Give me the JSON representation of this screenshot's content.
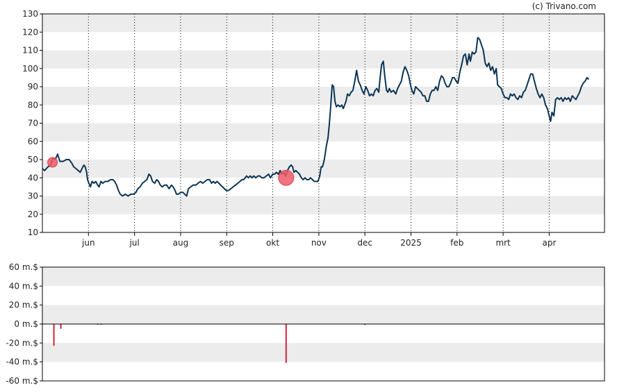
{
  "credit": "(c) Trivano.com",
  "colors": {
    "band": "#ececec",
    "price_line": "#0b3454",
    "marker_fill": "#ee5a69",
    "marker_stroke": "#d44455",
    "volume_bar": "#d6213a",
    "frame": "#000000"
  },
  "chart_data": [
    {
      "type": "line",
      "name": "price",
      "y_range": [
        10,
        130
      ],
      "y_ticks": [
        10,
        20,
        30,
        40,
        50,
        60,
        70,
        80,
        90,
        100,
        110,
        120,
        130
      ],
      "grid": "alternating horizontal bands, dotted vertical month lines",
      "x_range_months": [
        0,
        12.2
      ],
      "month_ticks": [
        {
          "label": "jun",
          "m": 1
        },
        {
          "label": "jul",
          "m": 2
        },
        {
          "label": "aug",
          "m": 3
        },
        {
          "label": "sep",
          "m": 4
        },
        {
          "label": "okt",
          "m": 5
        },
        {
          "label": "nov",
          "m": 6
        },
        {
          "label": "dec",
          "m": 7
        },
        {
          "label": "2025",
          "m": 8
        },
        {
          "label": "feb",
          "m": 9
        },
        {
          "label": "mrt",
          "m": 10
        },
        {
          "label": "apr",
          "m": 11
        }
      ],
      "points": [
        [
          0.0,
          45
        ],
        [
          0.05,
          44
        ],
        [
          0.12,
          46
        ],
        [
          0.18,
          47
        ],
        [
          0.23,
          51
        ],
        [
          0.28,
          50
        ],
        [
          0.33,
          53
        ],
        [
          0.38,
          49
        ],
        [
          0.45,
          49
        ],
        [
          0.52,
          50
        ],
        [
          0.58,
          50
        ],
        [
          0.64,
          48
        ],
        [
          0.68,
          46
        ],
        [
          0.73,
          45
        ],
        [
          0.78,
          44
        ],
        [
          0.82,
          43
        ],
        [
          0.86,
          45
        ],
        [
          0.9,
          47
        ],
        [
          0.93,
          46
        ],
        [
          0.96,
          43
        ],
        [
          0.98,
          39
        ],
        [
          1.01,
          37
        ],
        [
          1.04,
          35
        ],
        [
          1.08,
          38
        ],
        [
          1.12,
          37
        ],
        [
          1.16,
          38
        ],
        [
          1.2,
          36
        ],
        [
          1.23,
          35
        ],
        [
          1.27,
          38
        ],
        [
          1.31,
          37
        ],
        [
          1.36,
          38
        ],
        [
          1.42,
          38
        ],
        [
          1.48,
          39
        ],
        [
          1.53,
          39
        ],
        [
          1.57,
          38
        ],
        [
          1.61,
          36
        ],
        [
          1.65,
          33
        ],
        [
          1.69,
          31
        ],
        [
          1.74,
          30
        ],
        [
          1.8,
          31
        ],
        [
          1.86,
          30
        ],
        [
          1.92,
          31
        ],
        [
          1.98,
          31
        ],
        [
          2.03,
          32
        ],
        [
          2.07,
          34
        ],
        [
          2.12,
          35
        ],
        [
          2.17,
          37
        ],
        [
          2.22,
          38
        ],
        [
          2.27,
          39
        ],
        [
          2.31,
          42
        ],
        [
          2.35,
          41
        ],
        [
          2.39,
          38
        ],
        [
          2.44,
          37
        ],
        [
          2.48,
          39
        ],
        [
          2.52,
          38
        ],
        [
          2.56,
          36
        ],
        [
          2.6,
          35
        ],
        [
          2.65,
          36
        ],
        [
          2.7,
          36
        ],
        [
          2.75,
          34
        ],
        [
          2.8,
          36
        ],
        [
          2.84,
          35
        ],
        [
          2.88,
          33
        ],
        [
          2.91,
          31
        ],
        [
          2.95,
          31
        ],
        [
          3.0,
          32
        ],
        [
          3.05,
          32
        ],
        [
          3.09,
          31
        ],
        [
          3.13,
          30
        ],
        [
          3.17,
          34
        ],
        [
          3.22,
          35
        ],
        [
          3.27,
          36
        ],
        [
          3.33,
          36
        ],
        [
          3.38,
          37
        ],
        [
          3.43,
          38
        ],
        [
          3.48,
          37
        ],
        [
          3.53,
          38
        ],
        [
          3.58,
          39
        ],
        [
          3.63,
          39
        ],
        [
          3.67,
          37
        ],
        [
          3.71,
          38
        ],
        [
          3.75,
          37
        ],
        [
          3.79,
          38
        ],
        [
          3.83,
          37
        ],
        [
          3.87,
          36
        ],
        [
          3.91,
          35
        ],
        [
          3.95,
          34
        ],
        [
          3.99,
          33
        ],
        [
          4.04,
          33
        ],
        [
          4.09,
          34
        ],
        [
          4.14,
          35
        ],
        [
          4.19,
          36
        ],
        [
          4.24,
          37
        ],
        [
          4.29,
          38
        ],
        [
          4.33,
          39
        ],
        [
          4.37,
          39
        ],
        [
          4.4,
          40
        ],
        [
          4.43,
          41
        ],
        [
          4.47,
          40
        ],
        [
          4.51,
          41
        ],
        [
          4.55,
          40
        ],
        [
          4.59,
          41
        ],
        [
          4.63,
          40
        ],
        [
          4.68,
          41
        ],
        [
          4.72,
          41
        ],
        [
          4.76,
          40
        ],
        [
          4.81,
          40
        ],
        [
          4.86,
          41
        ],
        [
          4.91,
          42
        ],
        [
          4.95,
          40
        ],
        [
          5.0,
          42
        ],
        [
          5.04,
          42
        ],
        [
          5.08,
          43
        ],
        [
          5.12,
          42
        ],
        [
          5.16,
          44
        ],
        [
          5.2,
          42
        ],
        [
          5.24,
          43
        ],
        [
          5.28,
          41
        ],
        [
          5.32,
          44
        ],
        [
          5.36,
          46
        ],
        [
          5.4,
          47
        ],
        [
          5.43,
          46
        ],
        [
          5.46,
          43
        ],
        [
          5.5,
          44
        ],
        [
          5.54,
          43
        ],
        [
          5.58,
          42
        ],
        [
          5.62,
          40
        ],
        [
          5.66,
          39
        ],
        [
          5.7,
          40
        ],
        [
          5.74,
          39
        ],
        [
          5.78,
          39
        ],
        [
          5.82,
          40
        ],
        [
          5.86,
          39
        ],
        [
          5.9,
          38
        ],
        [
          5.94,
          38
        ],
        [
          5.98,
          38
        ],
        [
          6.02,
          41
        ],
        [
          6.05,
          46
        ],
        [
          6.08,
          46
        ],
        [
          6.12,
          50
        ],
        [
          6.16,
          57
        ],
        [
          6.2,
          62
        ],
        [
          6.23,
          70
        ],
        [
          6.26,
          80
        ],
        [
          6.29,
          91
        ],
        [
          6.32,
          90
        ],
        [
          6.35,
          82
        ],
        [
          6.38,
          79
        ],
        [
          6.42,
          80
        ],
        [
          6.46,
          79
        ],
        [
          6.5,
          80
        ],
        [
          6.53,
          78
        ],
        [
          6.56,
          80
        ],
        [
          6.59,
          82
        ],
        [
          6.62,
          86
        ],
        [
          6.66,
          85
        ],
        [
          6.7,
          87
        ],
        [
          6.74,
          88
        ],
        [
          6.78,
          93
        ],
        [
          6.82,
          99
        ],
        [
          6.86,
          93
        ],
        [
          6.9,
          91
        ],
        [
          6.94,
          88
        ],
        [
          6.98,
          86
        ],
        [
          7.02,
          90
        ],
        [
          7.06,
          88
        ],
        [
          7.1,
          85
        ],
        [
          7.14,
          86
        ],
        [
          7.18,
          85
        ],
        [
          7.22,
          88
        ],
        [
          7.26,
          89
        ],
        [
          7.3,
          87
        ],
        [
          7.33,
          95
        ],
        [
          7.36,
          102
        ],
        [
          7.4,
          104
        ],
        [
          7.43,
          96
        ],
        [
          7.47,
          88
        ],
        [
          7.5,
          87
        ],
        [
          7.53,
          89
        ],
        [
          7.57,
          87
        ],
        [
          7.62,
          88
        ],
        [
          7.67,
          86
        ],
        [
          7.71,
          89
        ],
        [
          7.75,
          91
        ],
        [
          7.79,
          93
        ],
        [
          7.83,
          98
        ],
        [
          7.87,
          101
        ],
        [
          7.91,
          99
        ],
        [
          7.95,
          96
        ],
        [
          7.99,
          91
        ],
        [
          8.02,
          88
        ],
        [
          8.06,
          86
        ],
        [
          8.1,
          90
        ],
        [
          8.14,
          89
        ],
        [
          8.18,
          88
        ],
        [
          8.22,
          87
        ],
        [
          8.26,
          85
        ],
        [
          8.3,
          85
        ],
        [
          8.34,
          82
        ],
        [
          8.38,
          82
        ],
        [
          8.42,
          86
        ],
        [
          8.46,
          88
        ],
        [
          8.5,
          88
        ],
        [
          8.54,
          90
        ],
        [
          8.58,
          88
        ],
        [
          8.62,
          93
        ],
        [
          8.66,
          96
        ],
        [
          8.7,
          95
        ],
        [
          8.74,
          92
        ],
        [
          8.78,
          90
        ],
        [
          8.82,
          90
        ],
        [
          8.86,
          92
        ],
        [
          8.9,
          95
        ],
        [
          8.94,
          95
        ],
        [
          8.98,
          93
        ],
        [
          9.02,
          92
        ],
        [
          9.06,
          98
        ],
        [
          9.1,
          102
        ],
        [
          9.14,
          107
        ],
        [
          9.18,
          108
        ],
        [
          9.22,
          102
        ],
        [
          9.26,
          108
        ],
        [
          9.29,
          104
        ],
        [
          9.33,
          109
        ],
        [
          9.37,
          108
        ],
        [
          9.41,
          109
        ],
        [
          9.45,
          117
        ],
        [
          9.49,
          116
        ],
        [
          9.53,
          113
        ],
        [
          9.57,
          110
        ],
        [
          9.61,
          103
        ],
        [
          9.65,
          101
        ],
        [
          9.69,
          103
        ],
        [
          9.73,
          99
        ],
        [
          9.77,
          101
        ],
        [
          9.81,
          97
        ],
        [
          9.85,
          100
        ],
        [
          9.88,
          91
        ],
        [
          9.92,
          90
        ],
        [
          9.96,
          89
        ],
        [
          10.0,
          86
        ],
        [
          10.04,
          84
        ],
        [
          10.08,
          84
        ],
        [
          10.12,
          83
        ],
        [
          10.16,
          86
        ],
        [
          10.2,
          85
        ],
        [
          10.24,
          86
        ],
        [
          10.28,
          84
        ],
        [
          10.32,
          83
        ],
        [
          10.36,
          85
        ],
        [
          10.4,
          84
        ],
        [
          10.44,
          87
        ],
        [
          10.48,
          88
        ],
        [
          10.52,
          91
        ],
        [
          10.56,
          94
        ],
        [
          10.6,
          97
        ],
        [
          10.64,
          97
        ],
        [
          10.68,
          93
        ],
        [
          10.72,
          89
        ],
        [
          10.76,
          86
        ],
        [
          10.8,
          84
        ],
        [
          10.84,
          86
        ],
        [
          10.88,
          84
        ],
        [
          10.92,
          80
        ],
        [
          10.96,
          78
        ],
        [
          11.0,
          74
        ],
        [
          11.03,
          71
        ],
        [
          11.06,
          76
        ],
        [
          11.1,
          74
        ],
        [
          11.14,
          83
        ],
        [
          11.18,
          84
        ],
        [
          11.22,
          83
        ],
        [
          11.26,
          84
        ],
        [
          11.3,
          82
        ],
        [
          11.34,
          84
        ],
        [
          11.38,
          83
        ],
        [
          11.42,
          84
        ],
        [
          11.46,
          82
        ],
        [
          11.5,
          85
        ],
        [
          11.54,
          84
        ],
        [
          11.58,
          83
        ],
        [
          11.62,
          85
        ],
        [
          11.66,
          87
        ],
        [
          11.7,
          90
        ],
        [
          11.74,
          92
        ],
        [
          11.78,
          93
        ],
        [
          11.82,
          95
        ],
        [
          11.86,
          94
        ]
      ],
      "markers": [
        {
          "m": 0.22,
          "value": 48.5,
          "size": "small"
        },
        {
          "m": 5.29,
          "value": 40,
          "size": "large"
        }
      ]
    },
    {
      "type": "bar",
      "name": "volume",
      "unit_suffix": " m.$",
      "y_range": [
        -60,
        60
      ],
      "y_ticks": [
        60,
        40,
        20,
        0,
        -20,
        -40,
        -60
      ],
      "y_tick_labels": [
        "60 m.$",
        "40 m.$",
        "20 m.$",
        "0 m.$",
        "-20 m.$",
        "-40 m.$",
        "-60 m.$"
      ],
      "bars": [
        {
          "m": 0.25,
          "value": -23
        },
        {
          "m": 0.4,
          "value": -5
        },
        {
          "m": 1.2,
          "value": -0.8
        },
        {
          "m": 1.28,
          "value": -0.8
        },
        {
          "m": 5.29,
          "value": -41
        },
        {
          "m": 7.0,
          "value": -1
        }
      ]
    }
  ]
}
